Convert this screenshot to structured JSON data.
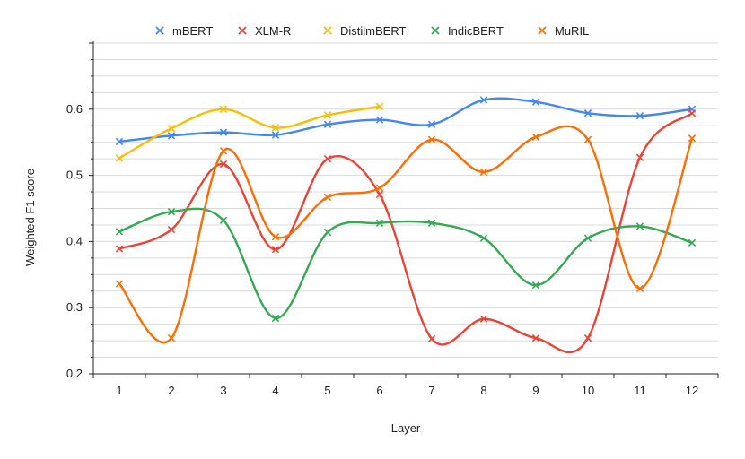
{
  "chart_data": {
    "type": "line",
    "title": "",
    "xlabel": "Layer",
    "ylabel": "Weighted F1 score",
    "x": [
      1,
      2,
      3,
      4,
      5,
      6,
      7,
      8,
      9,
      10,
      11,
      12
    ],
    "x_tick_labels": [
      "1",
      "2",
      "3",
      "4",
      "5",
      "6",
      "7",
      "8",
      "9",
      "10",
      "11",
      "12"
    ],
    "ylim": [
      0.2,
      0.7
    ],
    "y_tick_values": [
      0.2,
      0.3,
      0.4,
      0.5,
      0.6
    ],
    "y_tick_labels": [
      "0.2",
      "0.3",
      "0.4",
      "0.5",
      "0.6"
    ],
    "grid": true,
    "legend_position": "top",
    "marker": "x",
    "series": [
      {
        "name": "mBERT",
        "color": "#4285f4",
        "values": [
          0.551,
          0.56,
          0.565,
          0.561,
          0.577,
          0.584,
          0.577,
          0.614,
          0.611,
          0.594,
          0.59,
          0.6
        ]
      },
      {
        "name": "XLM-R",
        "color": "#ea4335",
        "values": [
          0.389,
          0.418,
          0.517,
          0.388,
          0.525,
          0.471,
          0.253,
          0.283,
          0.254,
          0.254,
          0.527,
          0.594
        ]
      },
      {
        "name": "DistilmBERT",
        "color": "#fbbc04",
        "values": [
          0.526,
          0.571,
          0.6,
          0.572,
          0.591,
          0.604,
          null,
          null,
          null,
          null,
          null,
          null
        ]
      },
      {
        "name": "IndicBERT",
        "color": "#34a853",
        "values": [
          0.415,
          0.445,
          0.432,
          0.284,
          0.414,
          0.428,
          0.428,
          0.405,
          0.334,
          0.405,
          0.423,
          0.398
        ]
      },
      {
        "name": "MuRIL",
        "color": "#ff6d01",
        "values": [
          0.336,
          0.254,
          0.537,
          0.407,
          0.467,
          0.481,
          0.554,
          0.505,
          0.558,
          0.554,
          0.329,
          0.556
        ]
      }
    ]
  }
}
